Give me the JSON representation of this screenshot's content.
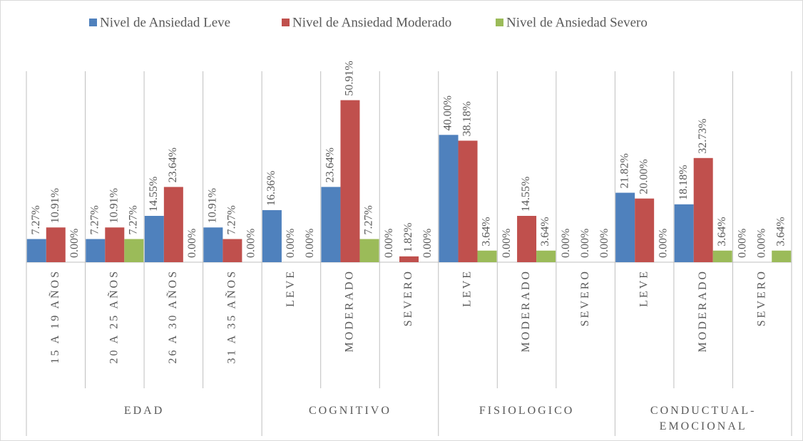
{
  "chart_data": {
    "type": "bar",
    "groups": [
      {
        "label": "EDAD",
        "categories": [
          "15 A 19 AÑOS",
          "20 A 25 AÑOS",
          "26 A 30 AÑOS",
          "31 A 35 AÑOS"
        ]
      },
      {
        "label": "COGNITIVO",
        "categories": [
          "LEVE",
          "MODERADO",
          "SEVERO"
        ]
      },
      {
        "label": "FISIOLOGICO",
        "categories": [
          "LEVE",
          "MODERADO",
          "SEVERO"
        ]
      },
      {
        "label": "CONDUCTUAL-EMOCIONAL",
        "categories": [
          "LEVE",
          "MODERADO",
          "SEVERO"
        ]
      }
    ],
    "series": [
      {
        "name": "Nivel de Ansiedad Leve",
        "color": "#4f81bd",
        "values": [
          7.27,
          7.27,
          14.55,
          10.91,
          16.36,
          23.64,
          0.0,
          40.0,
          0.0,
          0.0,
          21.82,
          18.18,
          0.0
        ],
        "value_labels": [
          "7.27%",
          "7.27%",
          "14.55%",
          "10.91%",
          "16.36%",
          "23.64%",
          "0.00%",
          "40.00%",
          "0.00%",
          "0.00%",
          "21.82%",
          "18.18%",
          "0.00%"
        ]
      },
      {
        "name": "Nivel de Ansiedad Moderado",
        "color": "#c0504d",
        "values": [
          10.91,
          10.91,
          23.64,
          7.27,
          0.0,
          50.91,
          1.82,
          38.18,
          14.55,
          0.0,
          20.0,
          32.73,
          0.0
        ],
        "value_labels": [
          "10.91%",
          "10.91%",
          "23.64%",
          "7.27%",
          "0.00%",
          "50.91%",
          "1.82%",
          "38.18%",
          "14.55%",
          "0.00%",
          "20.00%",
          "32.73%",
          "0.00%"
        ]
      },
      {
        "name": "Nivel de Ansiedad Severo",
        "color": "#9bbb59",
        "values": [
          0.0,
          7.27,
          0.0,
          0.0,
          0.0,
          7.27,
          0.0,
          3.64,
          3.64,
          0.0,
          0.0,
          3.64,
          3.64
        ],
        "value_labels": [
          "0.00%",
          "7.27%",
          "0.00%",
          "0.00%",
          "0.00%",
          "7.27%",
          "0.00%",
          "3.64%",
          "3.64%",
          "0.00%",
          "0.00%",
          "3.64%",
          "3.64%"
        ]
      }
    ],
    "ylim": [
      0,
      60
    ],
    "legend": "top"
  }
}
